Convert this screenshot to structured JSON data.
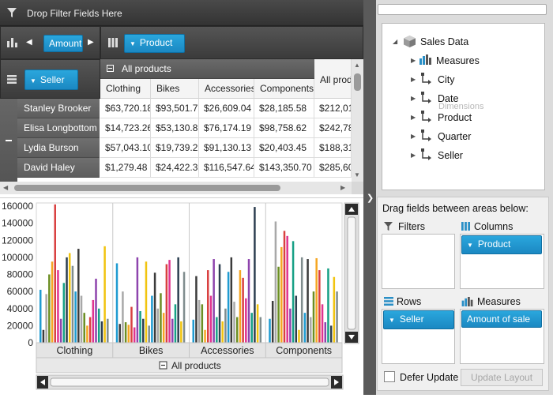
{
  "filter_bar": {
    "label": "Drop Filter Fields Here"
  },
  "data_zone": {
    "chip": "Amount"
  },
  "column_zone": {
    "chip": "Product"
  },
  "row_zone": {
    "chip": "Seller"
  },
  "grid": {
    "group_header": "All products",
    "columns": [
      "Clothing",
      "Bikes",
      "Accessories",
      "Components",
      "All prod"
    ],
    "rows": [
      {
        "seller": "Stanley Brooker",
        "values": [
          "$63,720.18",
          "$93,501.72",
          "$26,609.04",
          "$28,185.58",
          "$212,01"
        ]
      },
      {
        "seller": "Elisa Longbottom",
        "values": [
          "$14,723.26",
          "$53,130.86",
          "$76,174.19",
          "$98,758.62",
          "$242,78"
        ]
      },
      {
        "seller": "Lydia Burson",
        "values": [
          "$57,043.10",
          "$19,739.25",
          "$91,130.13",
          "$20,403.45",
          "$188,31"
        ]
      },
      {
        "seller": "David Haley",
        "values": [
          "$1,279.48",
          "$24,422.36",
          "$116,547.64",
          "$143,350.70",
          "$285,60"
        ]
      }
    ]
  },
  "chart_data": {
    "type": "bar",
    "categories": [
      "Clothing",
      "Bikes",
      "Accessories",
      "Components"
    ],
    "ylim": [
      0,
      160000
    ],
    "yticks": [
      "160000",
      "140000",
      "120000",
      "100000",
      "80000",
      "60000",
      "40000",
      "20000",
      "0"
    ],
    "x_group_label": "All products",
    "bar_colors": [
      "#1f9bd1",
      "#3b3b3b",
      "#a8a8a8",
      "#6b8e23",
      "#f5a623",
      "#d94040",
      "#e0338f",
      "#8e44ad",
      "#16a085",
      "#2c3e50",
      "#f1c40f",
      "#7f8c8d"
    ],
    "groups": [
      [
        62000,
        15000,
        57000,
        80000,
        95000,
        162000,
        85000,
        28000,
        70000,
        100000,
        105000,
        90000,
        60000,
        110000,
        55000,
        35000,
        20000,
        30000,
        50000,
        75000,
        40000,
        25000,
        113000,
        28000
      ],
      [
        93000,
        22000,
        60000,
        24000,
        21000,
        42000,
        18000,
        100000,
        37000,
        28000,
        95000,
        20000,
        55000,
        82000,
        40000,
        58000,
        35000,
        92000,
        97000,
        28000,
        45000,
        100000,
        25000,
        83000
      ],
      [
        27000,
        78000,
        50000,
        45000,
        15000,
        85000,
        55000,
        98000,
        30000,
        92000,
        25000,
        40000,
        83000,
        100000,
        48000,
        30000,
        85000,
        76000,
        52000,
        98000,
        35000,
        159000,
        45000,
        30000
      ],
      [
        28000,
        49000,
        142000,
        89000,
        112000,
        131000,
        125000,
        40000,
        119000,
        55000,
        15000,
        100000,
        35000,
        98000,
        30000,
        60000,
        99000,
        85000,
        45000,
        24000,
        87000,
        20000,
        77000,
        60000
      ]
    ]
  },
  "field_list": {
    "root": "Sales Data",
    "items": [
      "Measures",
      "City",
      "Date",
      "Product",
      "Quarter",
      "Seller"
    ],
    "ghost_label": "Dimensions",
    "instruction": "Drag fields between areas below:",
    "areas": {
      "filters": {
        "title": "Filters"
      },
      "columns": {
        "title": "Columns",
        "chip": "Product"
      },
      "rows": {
        "title": "Rows",
        "chip": "Seller"
      },
      "measures": {
        "title": "Measures",
        "chip": "Amount of sale"
      }
    },
    "defer_label": "Defer Update",
    "update_label": "Update Layout"
  }
}
